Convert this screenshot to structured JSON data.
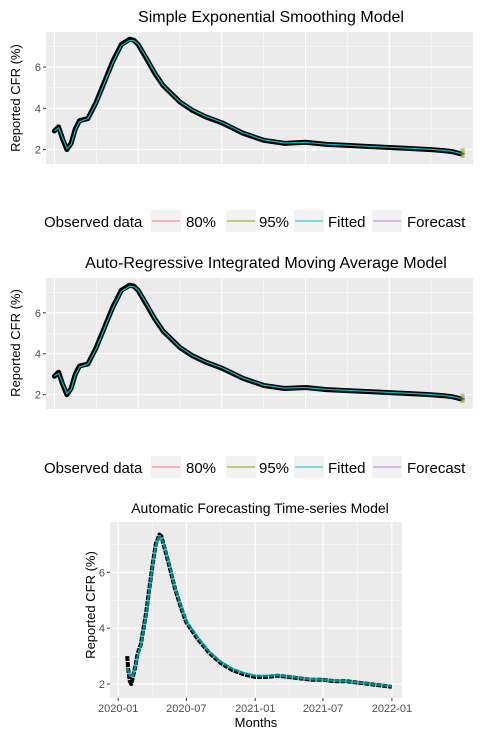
{
  "legend": {
    "items": [
      {
        "label": "Observed data",
        "color": "#000000"
      },
      {
        "label": "80%",
        "color": "#F8766D"
      },
      {
        "label": "95%",
        "color": "#7CAE00"
      },
      {
        "label": "Fitted",
        "color": "#00BFC4"
      },
      {
        "label": "Forecast",
        "color": "#C77CFF"
      }
    ]
  },
  "colors": {
    "panel_bg": "#EBEBEB",
    "grid_major": "#FFFFFF",
    "observed": "#000000",
    "fitted": "#00BFC4",
    "forecast_band": "#7CAE00",
    "axis_text": "#4D4D4D"
  },
  "chart_data": [
    {
      "type": "line",
      "title": "Simple Exponential Smoothing Model",
      "xlabel": "",
      "ylabel": "Reported CFR (%)",
      "yticks": [
        2,
        4,
        6
      ],
      "ylim": [
        1.3,
        7.7
      ],
      "xlim": [
        -2,
        100
      ],
      "x_tick_labels_shown": false,
      "legend": "bottom",
      "series": [
        {
          "name": "Observed data",
          "x": [
            0,
            1,
            2,
            3,
            4,
            5,
            6,
            8,
            10,
            12,
            14,
            16,
            18,
            19,
            20,
            22,
            24,
            26,
            28,
            30,
            33,
            36,
            40,
            45,
            50,
            55,
            60,
            65,
            70,
            75,
            80,
            85,
            90,
            93,
            95,
            96,
            97
          ],
          "y": [
            2.9,
            3.1,
            2.5,
            2.0,
            2.3,
            3.0,
            3.4,
            3.5,
            4.3,
            5.3,
            6.3,
            7.1,
            7.35,
            7.3,
            7.1,
            6.4,
            5.7,
            5.1,
            4.7,
            4.3,
            3.9,
            3.6,
            3.3,
            2.8,
            2.45,
            2.3,
            2.35,
            2.25,
            2.2,
            2.15,
            2.1,
            2.05,
            2.0,
            1.95,
            1.9,
            1.85,
            1.8
          ]
        },
        {
          "name": "Fitted",
          "x": [
            0,
            1,
            2,
            3,
            4,
            5,
            6,
            8,
            10,
            12,
            14,
            16,
            18,
            19,
            20,
            22,
            24,
            26,
            28,
            30,
            33,
            36,
            40,
            45,
            50,
            55,
            60,
            65,
            70,
            75,
            80,
            85,
            90,
            93,
            95,
            96,
            97
          ],
          "y": [
            2.9,
            3.05,
            2.55,
            2.05,
            2.25,
            2.95,
            3.35,
            3.5,
            4.25,
            5.25,
            6.25,
            7.05,
            7.3,
            7.28,
            7.12,
            6.45,
            5.72,
            5.12,
            4.72,
            4.32,
            3.92,
            3.62,
            3.32,
            2.82,
            2.47,
            2.32,
            2.35,
            2.26,
            2.21,
            2.16,
            2.11,
            2.06,
            2.01,
            1.96,
            1.91,
            1.86,
            1.81
          ]
        },
        {
          "name": "Forecast",
          "x": [
            97,
            98
          ],
          "y": [
            1.8,
            1.8
          ],
          "lower95": [
            1.6,
            1.6
          ],
          "upper95": [
            2.05,
            2.05
          ]
        }
      ]
    },
    {
      "type": "line",
      "title": "Auto-Regressive Integrated Moving Average Model",
      "xlabel": "",
      "ylabel": "Reported CFR (%)",
      "yticks": [
        2,
        4,
        6
      ],
      "ylim": [
        1.3,
        7.7
      ],
      "xlim": [
        -2,
        100
      ],
      "x_tick_labels_shown": false,
      "legend": "bottom",
      "series": [
        {
          "name": "Observed data",
          "x": [
            0,
            1,
            2,
            3,
            4,
            5,
            6,
            8,
            10,
            12,
            14,
            16,
            18,
            19,
            20,
            22,
            24,
            26,
            28,
            30,
            33,
            36,
            40,
            45,
            50,
            55,
            60,
            65,
            70,
            75,
            80,
            85,
            90,
            93,
            95,
            96,
            97
          ],
          "y": [
            2.9,
            3.1,
            2.5,
            2.0,
            2.3,
            3.0,
            3.4,
            3.5,
            4.3,
            5.3,
            6.3,
            7.1,
            7.35,
            7.3,
            7.1,
            6.4,
            5.7,
            5.1,
            4.7,
            4.3,
            3.9,
            3.6,
            3.3,
            2.8,
            2.45,
            2.3,
            2.35,
            2.25,
            2.2,
            2.15,
            2.1,
            2.05,
            2.0,
            1.95,
            1.9,
            1.85,
            1.8
          ]
        },
        {
          "name": "Fitted",
          "x": [
            0,
            1,
            2,
            3,
            4,
            5,
            6,
            8,
            10,
            12,
            14,
            16,
            18,
            19,
            20,
            22,
            24,
            26,
            28,
            30,
            33,
            36,
            40,
            45,
            50,
            55,
            60,
            65,
            70,
            75,
            80,
            85,
            90,
            93,
            95,
            96,
            97
          ],
          "y": [
            2.9,
            3.05,
            2.55,
            2.05,
            2.25,
            2.95,
            3.35,
            3.5,
            4.25,
            5.25,
            6.25,
            7.05,
            7.3,
            7.28,
            7.12,
            6.45,
            5.72,
            5.12,
            4.72,
            4.32,
            3.92,
            3.62,
            3.32,
            2.82,
            2.47,
            2.32,
            2.35,
            2.26,
            2.21,
            2.16,
            2.11,
            2.06,
            2.01,
            1.96,
            1.91,
            1.86,
            1.81
          ]
        },
        {
          "name": "Forecast",
          "x": [
            97,
            98
          ],
          "y": [
            1.8,
            1.8
          ],
          "lower95": [
            1.6,
            1.6
          ],
          "upper95": [
            2.05,
            2.05
          ]
        }
      ]
    },
    {
      "type": "line",
      "title": "Automatic Forecasting Time-series Model",
      "xlabel": "Months",
      "ylabel": "Reported CFR (%)",
      "yticks": [
        2,
        4,
        6
      ],
      "ylim": [
        1.5,
        7.8
      ],
      "xlim": [
        "2019-12-10",
        "2022-01-28"
      ],
      "xticks": [
        "2020-01",
        "2020-07",
        "2021-01",
        "2021-07",
        "2022-01"
      ],
      "series": [
        {
          "name": "Observed",
          "x": [
            "2020-01-25",
            "2020-01-28",
            "2020-02-01",
            "2020-02-05",
            "2020-02-10",
            "2020-02-15",
            "2020-02-22",
            "2020-03-01",
            "2020-03-15",
            "2020-04-01",
            "2020-04-10",
            "2020-04-20",
            "2020-04-25",
            "2020-05-01",
            "2020-05-15",
            "2020-06-01",
            "2020-06-15",
            "2020-07-01",
            "2020-08-01",
            "2020-09-01",
            "2020-10-01",
            "2020-11-01",
            "2020-12-01",
            "2021-01-01",
            "2021-02-01",
            "2021-03-01",
            "2021-04-01",
            "2021-05-01",
            "2021-06-01",
            "2021-07-01",
            "2021-08-01",
            "2021-09-01",
            "2021-10-01",
            "2021-11-01",
            "2021-12-01",
            "2022-01-01"
          ],
          "y": [
            3.0,
            2.5,
            2.1,
            2.0,
            2.3,
            2.6,
            3.1,
            3.4,
            4.5,
            6.2,
            7.0,
            7.35,
            7.3,
            7.0,
            6.3,
            5.4,
            4.8,
            4.2,
            3.6,
            3.1,
            2.75,
            2.5,
            2.35,
            2.25,
            2.25,
            2.3,
            2.25,
            2.2,
            2.15,
            2.15,
            2.1,
            2.1,
            2.05,
            2.0,
            1.95,
            1.9
          ]
        },
        {
          "name": "Fitted",
          "x": [
            "2020-01-25",
            "2020-02-01",
            "2020-02-10",
            "2020-02-22",
            "2020-03-01",
            "2020-03-15",
            "2020-04-01",
            "2020-04-10",
            "2020-04-20",
            "2020-05-01",
            "2020-05-15",
            "2020-06-01",
            "2020-06-15",
            "2020-07-01",
            "2020-08-01",
            "2020-09-01",
            "2020-10-01",
            "2020-11-01",
            "2020-12-01",
            "2021-01-01",
            "2021-02-01",
            "2021-03-01",
            "2021-04-01",
            "2021-05-01",
            "2021-06-01",
            "2021-07-01",
            "2021-08-01",
            "2021-09-01",
            "2021-10-01",
            "2021-11-01",
            "2021-12-01",
            "2022-01-01"
          ],
          "y": [
            2.6,
            2.3,
            2.3,
            3.0,
            3.35,
            4.45,
            6.15,
            6.95,
            7.3,
            7.05,
            6.35,
            5.45,
            4.85,
            4.25,
            3.65,
            3.15,
            2.8,
            2.55,
            2.4,
            2.3,
            2.3,
            2.32,
            2.27,
            2.22,
            2.17,
            2.16,
            2.12,
            2.1,
            2.06,
            2.01,
            1.96,
            1.92
          ]
        }
      ]
    }
  ]
}
